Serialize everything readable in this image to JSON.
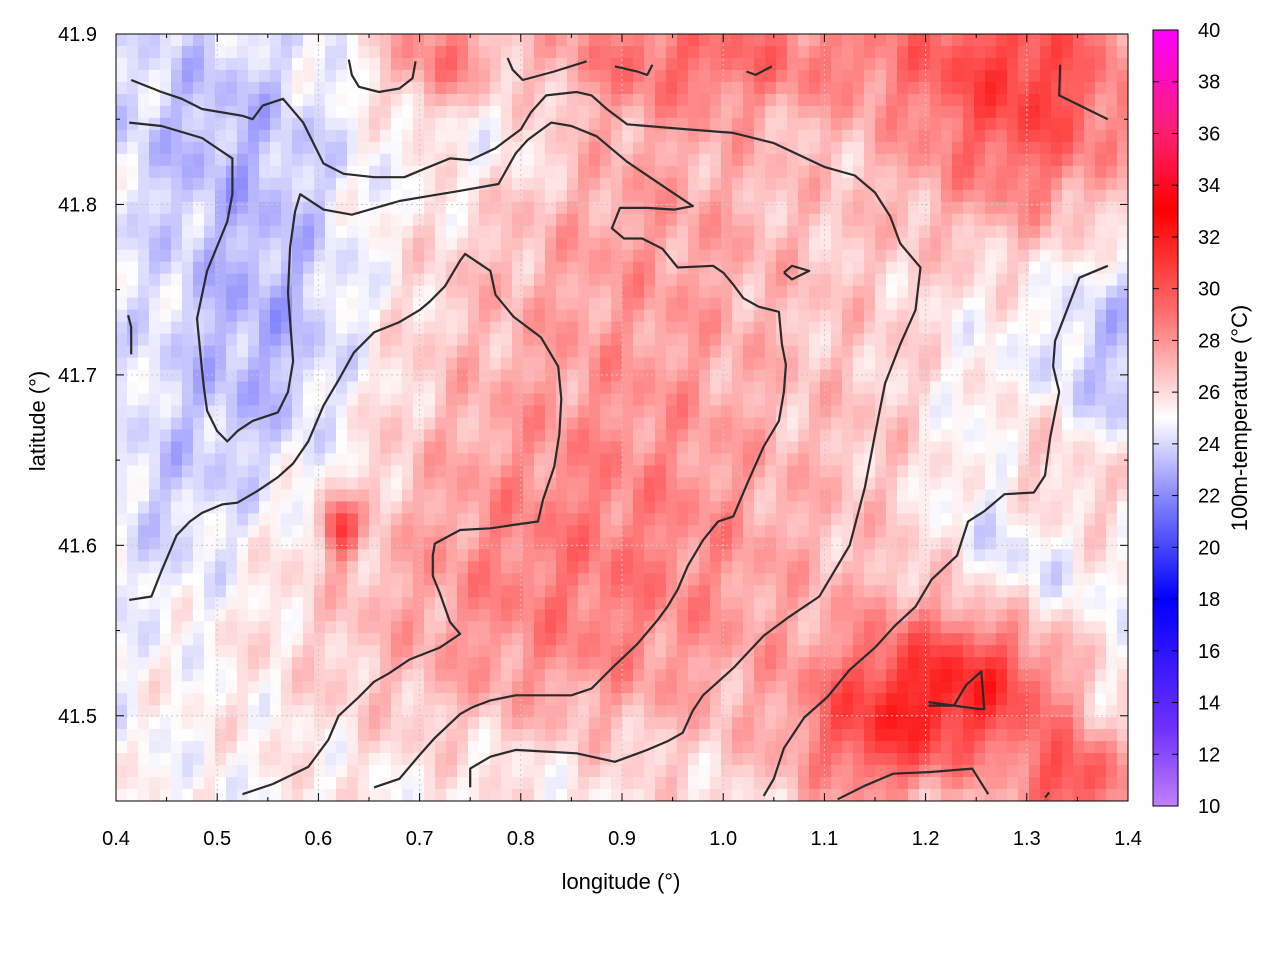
{
  "chart_data": {
    "type": "heatmap",
    "title": "",
    "xlabel": "longitude (°)",
    "ylabel": "latitude (°)",
    "colorbar_label": "100m-temperature (°C)",
    "xlim": [
      0.4,
      1.4
    ],
    "ylim": [
      41.45,
      41.9
    ],
    "clim": [
      10,
      40
    ],
    "x_ticks": [
      "0.4",
      "0.5",
      "0.6",
      "0.7",
      "0.8",
      "0.9",
      "1.0",
      "1.1",
      "1.2",
      "1.3",
      "1.4"
    ],
    "y_ticks": [
      "41.5",
      "41.6",
      "41.7",
      "41.8",
      "41.9"
    ],
    "colorbar_ticks": [
      "10",
      "12",
      "14",
      "16",
      "18",
      "20",
      "22",
      "24",
      "26",
      "28",
      "30",
      "32",
      "34",
      "36",
      "38",
      "40"
    ],
    "grid": true,
    "colormap": [
      {
        "value": 10,
        "color": "#c080ff"
      },
      {
        "value": 13,
        "color": "#7030ff"
      },
      {
        "value": 18,
        "color": "#0000ff"
      },
      {
        "value": 22,
        "color": "#8a8aff"
      },
      {
        "value": 25,
        "color": "#ffffff"
      },
      {
        "value": 29,
        "color": "#ff7070"
      },
      {
        "value": 33,
        "color": "#ff0000"
      },
      {
        "value": 36,
        "color": "#ff2070"
      },
      {
        "value": 40,
        "color": "#ff00ff"
      }
    ],
    "field_anomalies": [
      {
        "lon": 0.9,
        "lat": 41.66,
        "slon": 0.18,
        "slat": 0.14,
        "dt": 2.6
      },
      {
        "lon": 0.82,
        "lat": 41.56,
        "slon": 0.2,
        "slat": 0.07,
        "dt": 1.8
      },
      {
        "lon": 0.95,
        "lat": 41.82,
        "slon": 0.14,
        "slat": 0.07,
        "dt": 1.2
      },
      {
        "lon": 0.55,
        "lat": 41.72,
        "slon": 0.07,
        "slat": 0.07,
        "dt": -2.2
      },
      {
        "lon": 0.5,
        "lat": 41.85,
        "slon": 0.09,
        "slat": 0.05,
        "dt": -1.4
      },
      {
        "lon": 0.77,
        "lat": 41.86,
        "slon": 0.06,
        "slat": 0.04,
        "dt": -1.6
      },
      {
        "lon": 1.3,
        "lat": 41.86,
        "slon": 0.09,
        "slat": 0.06,
        "dt": 5.5
      },
      {
        "lon": 1.0,
        "lat": 41.89,
        "slon": 0.18,
        "slat": 0.025,
        "dt": 3.0
      },
      {
        "lon": 0.72,
        "lat": 41.885,
        "slon": 0.04,
        "slat": 0.025,
        "dt": 3.2
      },
      {
        "lon": 1.26,
        "lat": 41.52,
        "slon": 0.07,
        "slat": 0.035,
        "dt": 6.0
      },
      {
        "lon": 1.15,
        "lat": 41.49,
        "slon": 0.06,
        "slat": 0.035,
        "dt": 4.0
      },
      {
        "lon": 1.35,
        "lat": 41.46,
        "slon": 0.04,
        "slat": 0.02,
        "dt": 5.0
      },
      {
        "lon": 1.36,
        "lat": 41.63,
        "slon": 0.03,
        "slat": 0.03,
        "dt": 2.5
      },
      {
        "lon": 1.3,
        "lat": 41.65,
        "slon": 0.02,
        "slat": 0.03,
        "dt": 2.0
      },
      {
        "lon": 0.62,
        "lat": 41.61,
        "slon": 0.012,
        "slat": 0.012,
        "dt": 5.0
      },
      {
        "lon": 1.22,
        "lat": 41.75,
        "slon": 0.1,
        "slat": 0.1,
        "dt": -0.8
      },
      {
        "lon": 1.3,
        "lat": 41.58,
        "slon": 0.06,
        "slat": 0.05,
        "dt": -1.6
      },
      {
        "lon": 0.45,
        "lat": 41.62,
        "slon": 0.05,
        "slat": 0.05,
        "dt": -1.0
      },
      {
        "lon": 1.38,
        "lat": 41.72,
        "slon": 0.04,
        "slat": 0.05,
        "dt": -1.5
      },
      {
        "lon": 0.82,
        "lat": 41.47,
        "slon": 0.1,
        "slat": 0.025,
        "dt": -0.8
      },
      {
        "lon": 1.17,
        "lat": 41.7,
        "slon": 0.06,
        "slat": 0.1,
        "dt": 1.0
      }
    ],
    "contours": [
      [
        [
          0.415,
          41.873
        ],
        [
          0.445,
          41.866
        ],
        [
          0.465,
          41.862
        ],
        [
          0.485,
          41.856
        ],
        [
          0.525,
          41.852
        ],
        [
          0.535,
          41.85
        ],
        [
          0.545,
          41.858
        ],
        [
          0.565,
          41.862
        ],
        [
          0.585,
          41.848
        ],
        [
          0.605,
          41.824
        ],
        [
          0.625,
          41.818
        ],
        [
          0.655,
          41.816
        ],
        [
          0.685,
          41.816
        ],
        [
          0.705,
          41.821
        ],
        [
          0.73,
          41.827
        ],
        [
          0.75,
          41.826
        ],
        [
          0.775,
          41.833
        ],
        [
          0.8,
          41.844
        ],
        [
          0.81,
          41.854
        ],
        [
          0.825,
          41.864
        ],
        [
          0.855,
          41.866
        ],
        [
          0.87,
          41.864
        ],
        [
          0.885,
          41.856
        ],
        [
          0.905,
          41.847
        ],
        [
          0.965,
          41.844
        ],
        [
          1.01,
          41.842
        ],
        [
          1.05,
          41.836
        ],
        [
          1.1,
          41.822
        ],
        [
          1.13,
          41.817
        ],
        [
          1.15,
          41.807
        ],
        [
          1.165,
          41.793
        ],
        [
          1.175,
          41.777
        ],
        [
          1.195,
          41.763
        ],
        [
          1.19,
          41.738
        ],
        [
          1.175,
          41.718
        ],
        [
          1.16,
          41.695
        ],
        [
          1.15,
          41.665
        ],
        [
          1.14,
          41.634
        ],
        [
          1.125,
          41.6
        ],
        [
          1.095,
          41.57
        ],
        [
          1.065,
          41.558
        ],
        [
          1.04,
          41.547
        ],
        [
          1.01,
          41.528
        ],
        [
          0.98,
          41.512
        ],
        [
          0.97,
          41.503
        ],
        [
          0.96,
          41.49
        ],
        [
          0.945,
          41.485
        ],
        [
          0.925,
          41.48
        ],
        [
          0.893,
          41.473
        ],
        [
          0.855,
          41.478
        ],
        [
          0.795,
          41.48
        ],
        [
          0.77,
          41.476
        ],
        [
          0.75,
          41.469
        ],
        [
          0.75,
          41.458
        ]
      ],
      [
        [
          0.413,
          41.848
        ],
        [
          0.445,
          41.846
        ],
        [
          0.485,
          41.839
        ],
        [
          0.515,
          41.827
        ],
        [
          0.515,
          41.806
        ],
        [
          0.51,
          41.79
        ],
        [
          0.49,
          41.761
        ],
        [
          0.48,
          41.733
        ],
        [
          0.485,
          41.703
        ],
        [
          0.487,
          41.692
        ],
        [
          0.49,
          41.679
        ],
        [
          0.5,
          41.667
        ],
        [
          0.51,
          41.661
        ],
        [
          0.52,
          41.667
        ],
        [
          0.535,
          41.673
        ],
        [
          0.56,
          41.678
        ],
        [
          0.57,
          41.69
        ],
        [
          0.575,
          41.708
        ],
        [
          0.573,
          41.724
        ],
        [
          0.57,
          41.748
        ],
        [
          0.572,
          41.775
        ],
        [
          0.577,
          41.796
        ],
        [
          0.582,
          41.806
        ],
        [
          0.605,
          41.797
        ],
        [
          0.633,
          41.794
        ],
        [
          0.68,
          41.802
        ],
        [
          0.7,
          41.804
        ],
        [
          0.74,
          41.808
        ],
        [
          0.778,
          41.812
        ],
        [
          0.795,
          41.83
        ],
        [
          0.807,
          41.838
        ],
        [
          0.83,
          41.848
        ],
        [
          0.85,
          41.846
        ],
        [
          0.875,
          41.84
        ],
        [
          0.905,
          41.825
        ],
        [
          0.935,
          41.813
        ],
        [
          0.97,
          41.799
        ],
        [
          0.952,
          41.797
        ],
        [
          0.925,
          41.798
        ],
        [
          0.898,
          41.798
        ],
        [
          0.89,
          41.786
        ],
        [
          0.902,
          41.78
        ],
        [
          0.92,
          41.78
        ],
        [
          0.94,
          41.774
        ],
        [
          0.955,
          41.763
        ],
        [
          0.99,
          41.764
        ],
        [
          1.0,
          41.76
        ],
        [
          1.01,
          41.753
        ],
        [
          1.02,
          41.745
        ],
        [
          1.035,
          41.74
        ],
        [
          1.055,
          41.737
        ],
        [
          1.058,
          41.718
        ],
        [
          1.062,
          41.706
        ],
        [
          1.06,
          41.69
        ],
        [
          1.055,
          41.673
        ],
        [
          1.04,
          41.658
        ],
        [
          1.025,
          41.638
        ],
        [
          1.01,
          41.617
        ],
        [
          0.995,
          41.614
        ],
        [
          0.98,
          41.603
        ],
        [
          0.965,
          41.588
        ],
        [
          0.955,
          41.574
        ],
        [
          0.945,
          41.564
        ],
        [
          0.935,
          41.556
        ],
        [
          0.915,
          41.542
        ],
        [
          0.89,
          41.528
        ],
        [
          0.87,
          41.516
        ],
        [
          0.85,
          41.512
        ],
        [
          0.825,
          41.512
        ],
        [
          0.795,
          41.512
        ],
        [
          0.77,
          41.509
        ],
        [
          0.752,
          41.505
        ],
        [
          0.74,
          41.501
        ],
        [
          0.715,
          41.487
        ],
        [
          0.7,
          41.477
        ],
        [
          0.68,
          41.463
        ],
        [
          0.655,
          41.458
        ]
      ],
      [
        [
          0.413,
          41.568
        ],
        [
          0.435,
          41.57
        ],
        [
          0.445,
          41.585
        ],
        [
          0.46,
          41.606
        ],
        [
          0.473,
          41.614
        ],
        [
          0.485,
          41.619
        ],
        [
          0.505,
          41.624
        ],
        [
          0.52,
          41.625
        ],
        [
          0.54,
          41.632
        ],
        [
          0.56,
          41.64
        ],
        [
          0.575,
          41.648
        ],
        [
          0.59,
          41.661
        ],
        [
          0.605,
          41.682
        ],
        [
          0.62,
          41.697
        ],
        [
          0.635,
          41.713
        ],
        [
          0.655,
          41.725
        ],
        [
          0.68,
          41.731
        ],
        [
          0.7,
          41.738
        ],
        [
          0.71,
          41.743
        ],
        [
          0.725,
          41.752
        ],
        [
          0.74,
          41.767
        ],
        [
          0.745,
          41.771
        ],
        [
          0.77,
          41.761
        ],
        [
          0.775,
          41.747
        ],
        [
          0.793,
          41.734
        ],
        [
          0.82,
          41.722
        ],
        [
          0.837,
          41.705
        ],
        [
          0.84,
          41.686
        ],
        [
          0.838,
          41.665
        ],
        [
          0.833,
          41.646
        ],
        [
          0.822,
          41.627
        ],
        [
          0.817,
          41.614
        ],
        [
          0.793,
          41.612
        ],
        [
          0.77,
          41.61
        ],
        [
          0.74,
          41.609
        ],
        [
          0.715,
          41.601
        ],
        [
          0.713,
          41.594
        ],
        [
          0.713,
          41.582
        ],
        [
          0.72,
          41.572
        ],
        [
          0.73,
          41.555
        ],
        [
          0.74,
          41.548
        ],
        [
          0.72,
          41.54
        ],
        [
          0.69,
          41.533
        ],
        [
          0.67,
          41.525
        ],
        [
          0.655,
          41.52
        ],
        [
          0.64,
          41.511
        ],
        [
          0.62,
          41.5
        ],
        [
          0.61,
          41.486
        ],
        [
          0.59,
          41.47
        ],
        [
          0.555,
          41.46
        ],
        [
          0.525,
          41.454
        ]
      ],
      [
        [
          0.412,
          41.735
        ],
        [
          0.415,
          41.728
        ],
        [
          0.415,
          41.712
        ]
      ],
      [
        [
          0.63,
          41.885
        ],
        [
          0.633,
          41.876
        ],
        [
          0.64,
          41.869
        ],
        [
          0.66,
          41.866
        ],
        [
          0.68,
          41.868
        ],
        [
          0.693,
          41.874
        ],
        [
          0.696,
          41.884
        ]
      ],
      [
        [
          0.787,
          41.886
        ],
        [
          0.792,
          41.879
        ],
        [
          0.802,
          41.873
        ],
        [
          0.833,
          41.878
        ],
        [
          0.865,
          41.884
        ]
      ],
      [
        [
          0.893,
          41.881
        ],
        [
          0.915,
          41.878
        ],
        [
          0.925,
          41.876
        ],
        [
          0.93,
          41.882
        ]
      ],
      [
        [
          1.023,
          41.878
        ],
        [
          1.032,
          41.876
        ],
        [
          1.048,
          41.881
        ]
      ],
      [
        [
          1.333,
          41.882
        ],
        [
          1.332,
          41.864
        ],
        [
          1.38,
          41.85
        ]
      ],
      [
        [
          1.06,
          41.76
        ],
        [
          1.068,
          41.764
        ],
        [
          1.085,
          41.761
        ],
        [
          1.068,
          41.756
        ],
        [
          1.06,
          41.76
        ]
      ],
      [
        [
          1.38,
          41.764
        ],
        [
          1.352,
          41.757
        ],
        [
          1.328,
          41.72
        ],
        [
          1.326,
          41.705
        ],
        [
          1.332,
          41.69
        ],
        [
          1.323,
          41.663
        ],
        [
          1.318,
          41.641
        ],
        [
          1.307,
          41.631
        ],
        [
          1.278,
          41.63
        ],
        [
          1.258,
          41.62
        ],
        [
          1.242,
          41.614
        ],
        [
          1.231,
          41.594
        ],
        [
          1.206,
          41.58
        ],
        [
          1.19,
          41.564
        ],
        [
          1.17,
          41.553
        ],
        [
          1.15,
          41.54
        ],
        [
          1.125,
          41.527
        ],
        [
          1.103,
          41.511
        ],
        [
          1.08,
          41.499
        ],
        [
          1.06,
          41.481
        ],
        [
          1.05,
          41.463
        ],
        [
          1.04,
          41.453
        ]
      ],
      [
        [
          1.113,
          41.451
        ],
        [
          1.14,
          41.459
        ],
        [
          1.168,
          41.466
        ],
        [
          1.205,
          41.467
        ],
        [
          1.246,
          41.469
        ],
        [
          1.262,
          41.454
        ]
      ],
      [
        [
          1.203,
          41.506
        ],
        [
          1.228,
          41.506
        ],
        [
          1.24,
          41.518
        ],
        [
          1.255,
          41.526
        ],
        [
          1.258,
          41.504
        ],
        [
          1.253,
          41.504
        ],
        [
          1.203,
          41.508
        ]
      ],
      [
        [
          1.318,
          41.452
        ],
        [
          1.322,
          41.455
        ]
      ]
    ]
  }
}
